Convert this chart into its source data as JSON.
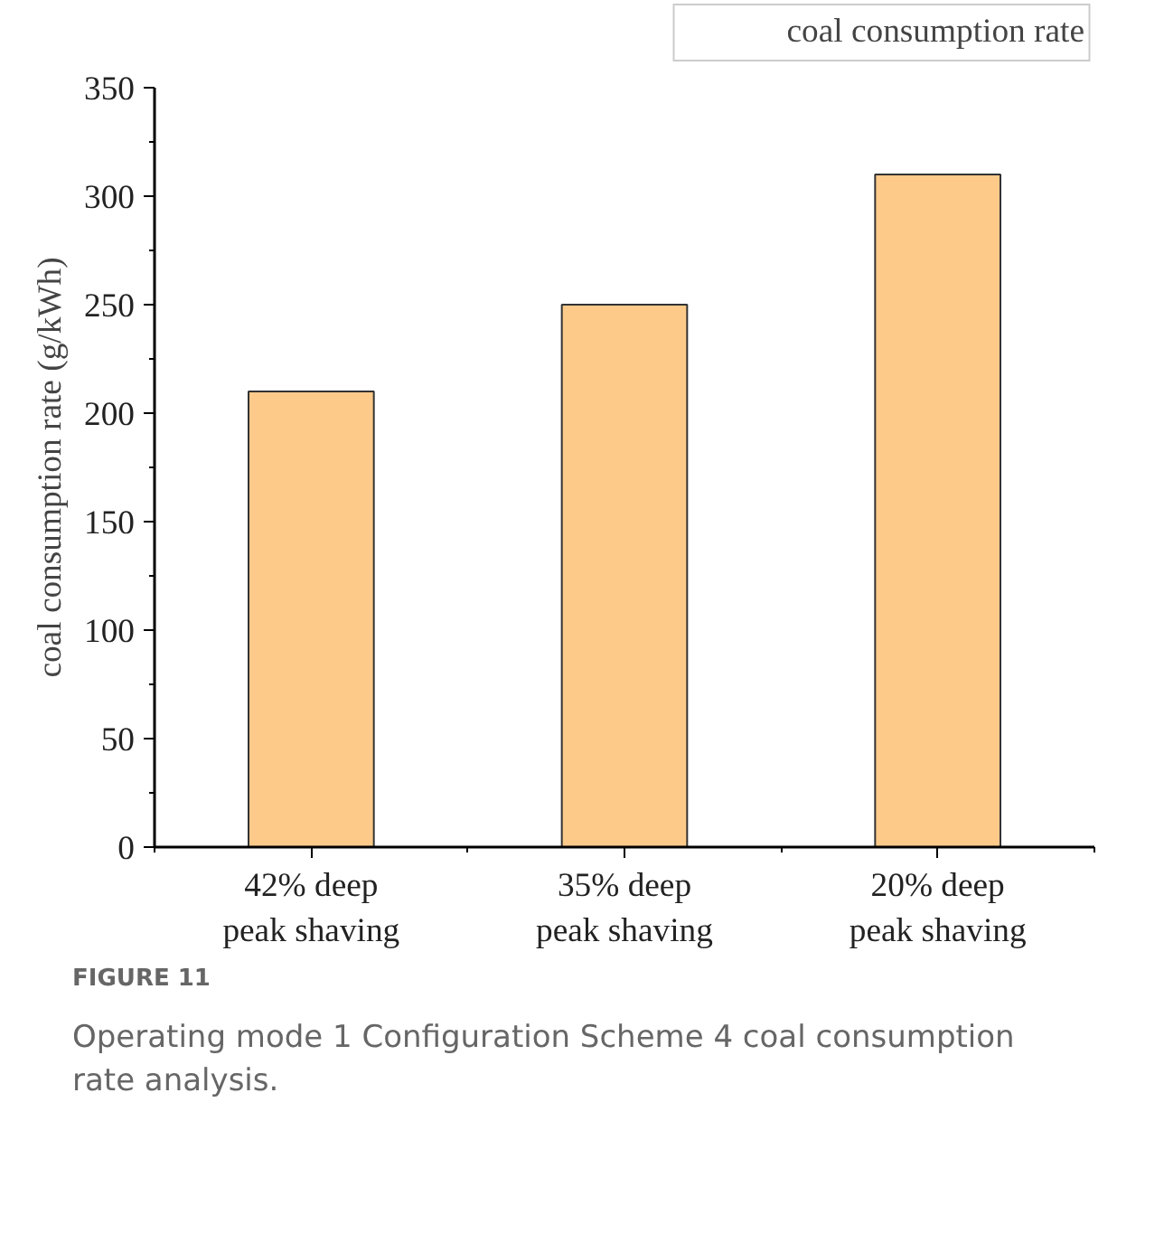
{
  "chart_data": {
    "type": "bar",
    "ylabel": "coal consumption rate (g/kWh)",
    "categories": [
      "42% deep\npeak shaving",
      "35% deep\npeak shaving",
      "20% deep\npeak shaving"
    ],
    "series": [
      {
        "name": "coal consumption rate",
        "color": "#fdca8a",
        "values": [
          210,
          250,
          310
        ]
      }
    ],
    "ylim": [
      0,
      350
    ],
    "yticks": [
      0,
      50,
      100,
      150,
      200,
      250,
      300,
      350
    ],
    "grid": false,
    "legend": "top right",
    "annotations": [
      "FIGURE 11",
      "Operating mode 1 Configuration Scheme 4 coal consumption rate analysis."
    ]
  }
}
